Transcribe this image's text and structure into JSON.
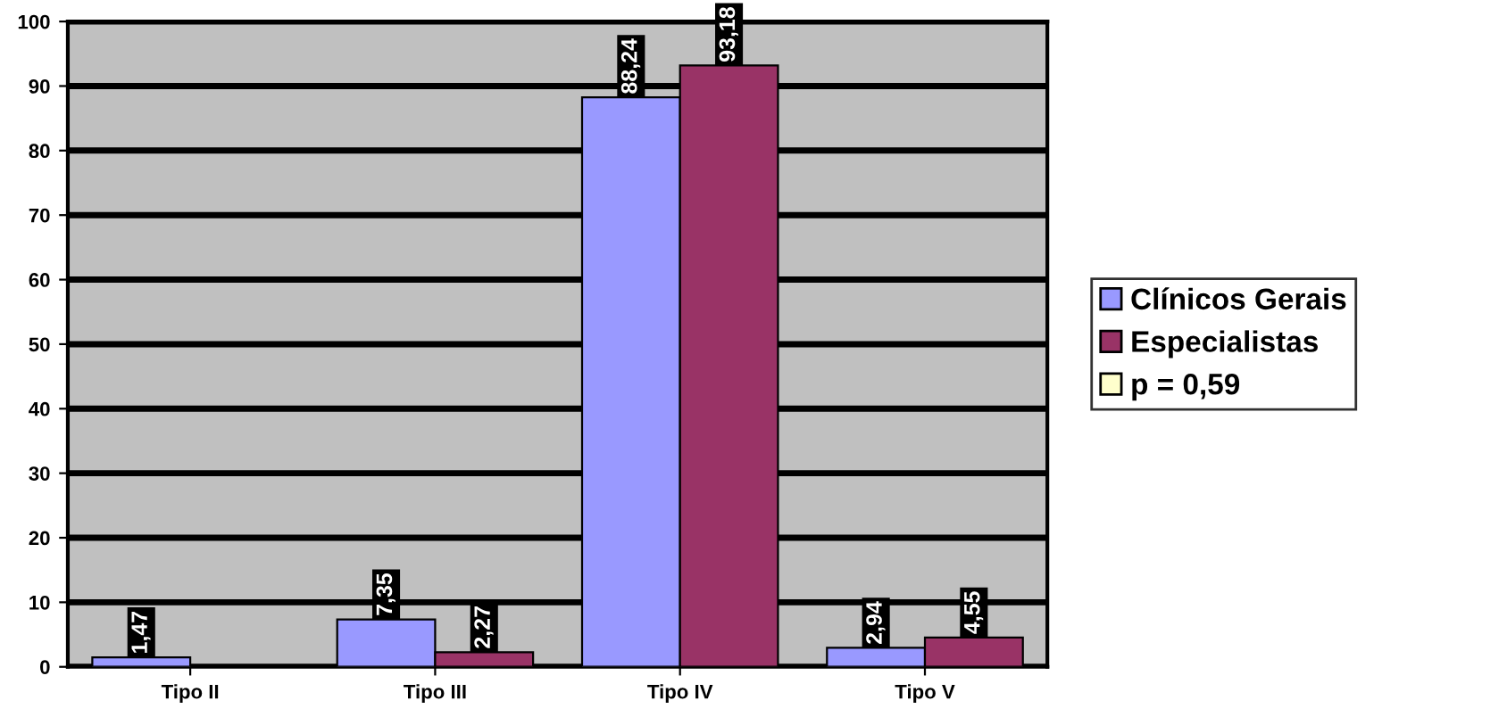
{
  "chart_data": {
    "type": "bar",
    "categories": [
      "Tipo II",
      "Tipo III",
      "Tipo IV",
      "Tipo V"
    ],
    "series": [
      {
        "name": "Clínicos Gerais",
        "color": "#9999ff",
        "values": [
          1.47,
          7.35,
          88.24,
          2.94
        ],
        "value_labels": [
          "1,47",
          "7,35",
          "88,24",
          "2,94"
        ]
      },
      {
        "name": "Especialistas",
        "color": "#993366",
        "values": [
          null,
          2.27,
          93.18,
          4.55
        ],
        "value_labels": [
          null,
          "2,27",
          "93,18",
          "4,55"
        ]
      },
      {
        "name": "p = 0,59",
        "color": "#ffffcc",
        "values": [
          null,
          null,
          null,
          null
        ]
      }
    ],
    "ylim": [
      0,
      100
    ],
    "yticks": [
      0,
      10,
      20,
      30,
      40,
      50,
      60,
      70,
      80,
      90,
      100
    ],
    "grid": "y",
    "legend": "right"
  }
}
